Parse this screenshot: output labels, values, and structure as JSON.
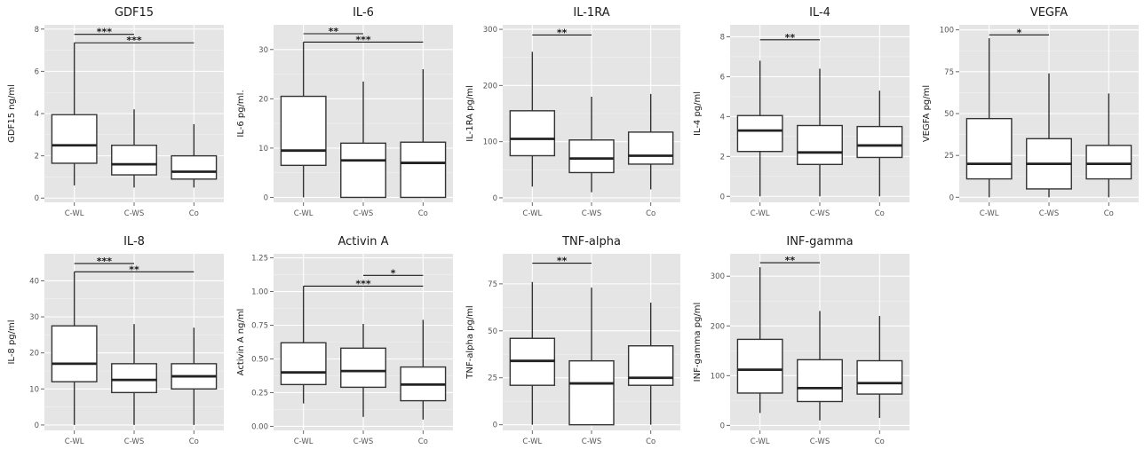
{
  "chart_data": [
    {
      "type": "box",
      "title": "GDF15",
      "ylabel": "GDF15 ng/ml",
      "categories": [
        "C-WL",
        "C-WS",
        "Co"
      ],
      "ylim": [
        -0.2,
        8.2
      ],
      "yticks": [
        0,
        2,
        4,
        6,
        8
      ],
      "ytick_labels": [
        "0",
        "2",
        "4",
        "6",
        "8"
      ],
      "boxes": [
        {
          "low": 0.6,
          "q1": 1.65,
          "median": 2.5,
          "q3": 3.95,
          "high": 7.35
        },
        {
          "low": 0.5,
          "q1": 1.1,
          "median": 1.6,
          "q3": 2.5,
          "high": 4.2
        },
        {
          "low": 0.5,
          "q1": 0.9,
          "median": 1.25,
          "q3": 2.0,
          "high": 3.5
        }
      ],
      "significance": [
        {
          "from": 0,
          "to": 1,
          "y": 7.75,
          "label": "***"
        },
        {
          "from": 0,
          "to": 2,
          "y": 7.35,
          "label": "***"
        }
      ]
    },
    {
      "type": "box",
      "title": "IL-6",
      "ylabel": "IL-6 pg/ml.",
      "categories": [
        "C-WL",
        "C-WS",
        "Co"
      ],
      "ylim": [
        -1,
        35
      ],
      "yticks": [
        0,
        10,
        20,
        30
      ],
      "ytick_labels": [
        "0",
        "10",
        "20",
        "30"
      ],
      "boxes": [
        {
          "low": 0,
          "q1": 6.5,
          "median": 9.5,
          "q3": 20.5,
          "high": 31.5
        },
        {
          "low": 0,
          "q1": 0,
          "median": 7.5,
          "q3": 11,
          "high": 23.5
        },
        {
          "low": 0,
          "q1": 0,
          "median": 7,
          "q3": 11.2,
          "high": 26
        }
      ],
      "significance": [
        {
          "from": 0,
          "to": 1,
          "y": 33.2,
          "label": "**"
        },
        {
          "from": 0,
          "to": 2,
          "y": 31.5,
          "label": "***"
        }
      ]
    },
    {
      "type": "box",
      "title": "IL-1RA",
      "ylabel": "IL-1RA pg/ml",
      "categories": [
        "C-WL",
        "C-WS",
        "Co"
      ],
      "ylim": [
        -8,
        308
      ],
      "yticks": [
        0,
        100,
        200,
        300
      ],
      "ytick_labels": [
        "0",
        "100",
        "200",
        "300"
      ],
      "boxes": [
        {
          "low": 20,
          "q1": 75,
          "median": 105,
          "q3": 155,
          "high": 260
        },
        {
          "low": 10,
          "q1": 45,
          "median": 70,
          "q3": 103,
          "high": 180
        },
        {
          "low": 15,
          "q1": 60,
          "median": 75,
          "q3": 117,
          "high": 185
        }
      ],
      "significance": [
        {
          "from": 0,
          "to": 1,
          "y": 290,
          "label": "**"
        }
      ]
    },
    {
      "type": "box",
      "title": "IL-4",
      "ylabel": "IL-4 pg/ml",
      "categories": [
        "C-WL",
        "C-WS",
        "Co"
      ],
      "ylim": [
        -0.3,
        8.6
      ],
      "yticks": [
        0,
        2,
        4,
        6,
        8
      ],
      "ytick_labels": [
        "0",
        "2",
        "4",
        "6",
        "8"
      ],
      "boxes": [
        {
          "low": 0,
          "q1": 2.25,
          "median": 3.3,
          "q3": 4.05,
          "high": 6.8
        },
        {
          "low": 0,
          "q1": 1.6,
          "median": 2.2,
          "q3": 3.55,
          "high": 6.4
        },
        {
          "low": 0,
          "q1": 1.95,
          "median": 2.55,
          "q3": 3.5,
          "high": 5.3
        }
      ],
      "significance": [
        {
          "from": 0,
          "to": 1,
          "y": 7.85,
          "label": "**"
        }
      ]
    },
    {
      "type": "box",
      "title": "VEGFA",
      "ylabel": "VEGFA pg/ml",
      "categories": [
        "C-WL",
        "C-WS",
        "Co"
      ],
      "ylim": [
        -3,
        103
      ],
      "yticks": [
        0,
        25,
        50,
        75,
        100
      ],
      "ytick_labels": [
        "0",
        "25",
        "50",
        "75",
        "100"
      ],
      "boxes": [
        {
          "low": 0,
          "q1": 11,
          "median": 20,
          "q3": 47,
          "high": 95
        },
        {
          "low": 0,
          "q1": 5,
          "median": 20,
          "q3": 35,
          "high": 74
        },
        {
          "low": 0,
          "q1": 11,
          "median": 20,
          "q3": 31,
          "high": 62
        }
      ],
      "significance": [
        {
          "from": 0,
          "to": 1,
          "y": 97,
          "label": "*"
        }
      ]
    },
    {
      "type": "box",
      "title": "IL-8",
      "ylabel": "IL-8 pg/ml",
      "categories": [
        "C-WL",
        "C-WS",
        "Co"
      ],
      "ylim": [
        -1.5,
        47.5
      ],
      "yticks": [
        0,
        10,
        20,
        30,
        40
      ],
      "ytick_labels": [
        "0",
        "10",
        "20",
        "30",
        "40"
      ],
      "boxes": [
        {
          "low": 0,
          "q1": 12,
          "median": 17,
          "q3": 27.5,
          "high": 42.5
        },
        {
          "low": 0,
          "q1": 9,
          "median": 12.5,
          "q3": 17,
          "high": 28
        },
        {
          "low": 0,
          "q1": 10,
          "median": 13.5,
          "q3": 17,
          "high": 27
        }
      ],
      "significance": [
        {
          "from": 0,
          "to": 1,
          "y": 44.8,
          "label": "***"
        },
        {
          "from": 0,
          "to": 2,
          "y": 42.5,
          "label": "**"
        }
      ]
    },
    {
      "type": "box",
      "title": "Activin A",
      "ylabel": "Activin A ng/ml",
      "categories": [
        "C-WL",
        "C-WS",
        "Co"
      ],
      "ylim": [
        -0.03,
        1.28
      ],
      "yticks": [
        0,
        0.25,
        0.5,
        0.75,
        1.0,
        1.25
      ],
      "ytick_labels": [
        "0.00",
        "0.25",
        "0.50",
        "0.75",
        "1.00",
        "1.25"
      ],
      "boxes": [
        {
          "low": 0.17,
          "q1": 0.31,
          "median": 0.4,
          "q3": 0.62,
          "high": 1.04
        },
        {
          "low": 0.07,
          "q1": 0.29,
          "median": 0.41,
          "q3": 0.58,
          "high": 0.76
        },
        {
          "low": 0.05,
          "q1": 0.19,
          "median": 0.31,
          "q3": 0.44,
          "high": 0.79
        }
      ],
      "significance": [
        {
          "from": 1,
          "to": 2,
          "y": 1.12,
          "label": "*"
        },
        {
          "from": 0,
          "to": 2,
          "y": 1.04,
          "label": "***"
        }
      ]
    },
    {
      "type": "box",
      "title": "TNF-alpha",
      "ylabel": "TNF-alpha pg/ml",
      "categories": [
        "C-WL",
        "C-WS",
        "Co"
      ],
      "ylim": [
        -3,
        91
      ],
      "yticks": [
        0,
        25,
        50,
        75
      ],
      "ytick_labels": [
        "0",
        "25",
        "50",
        "75"
      ],
      "boxes": [
        {
          "low": 0,
          "q1": 21,
          "median": 34,
          "q3": 46,
          "high": 76
        },
        {
          "low": 0,
          "q1": 0,
          "median": 22,
          "q3": 34,
          "high": 73
        },
        {
          "low": 0,
          "q1": 21,
          "median": 25,
          "q3": 42,
          "high": 65
        }
      ],
      "significance": [
        {
          "from": 0,
          "to": 1,
          "y": 86,
          "label": "**"
        }
      ]
    },
    {
      "type": "box",
      "title": "INF-gamma",
      "ylabel": "INF-gamma pg/ml",
      "categories": [
        "C-WL",
        "C-WS",
        "Co"
      ],
      "ylim": [
        -10,
        345
      ],
      "yticks": [
        0,
        100,
        200,
        300
      ],
      "ytick_labels": [
        "0",
        "100",
        "200",
        "300"
      ],
      "boxes": [
        {
          "low": 25,
          "q1": 65,
          "median": 112,
          "q3": 173,
          "high": 318
        },
        {
          "low": 10,
          "q1": 48,
          "median": 75,
          "q3": 132,
          "high": 230
        },
        {
          "low": 15,
          "q1": 63,
          "median": 85,
          "q3": 130,
          "high": 220
        }
      ],
      "significance": [
        {
          "from": 0,
          "to": 1,
          "y": 327,
          "label": "**"
        }
      ]
    }
  ]
}
